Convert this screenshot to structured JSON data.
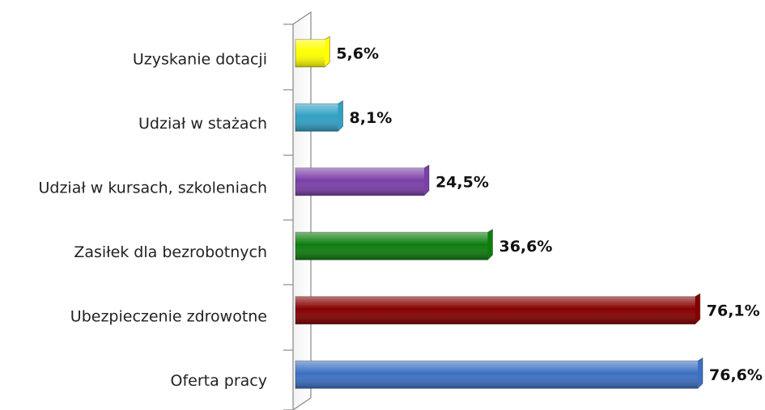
{
  "chart_data": {
    "type": "barh",
    "categories": [
      "Uzyskanie dotacji",
      "Udział w stażach",
      "Udział w kursach, szkoleniach",
      "Zasiłek dla bezrobotnych",
      "Ubezpieczenie zdrowotne",
      "Oferta pracy"
    ],
    "values": [
      5.6,
      8.1,
      24.5,
      36.6,
      76.1,
      76.6
    ],
    "value_labels": [
      "5,6%",
      "8,1%",
      "24,5%",
      "36,6%",
      "76,1%",
      "76,6%"
    ],
    "colors": [
      "#ffff00",
      "#31a0c4",
      "#7a3fa8",
      "#0d7d0d",
      "#840000",
      "#3c70c2"
    ]
  }
}
